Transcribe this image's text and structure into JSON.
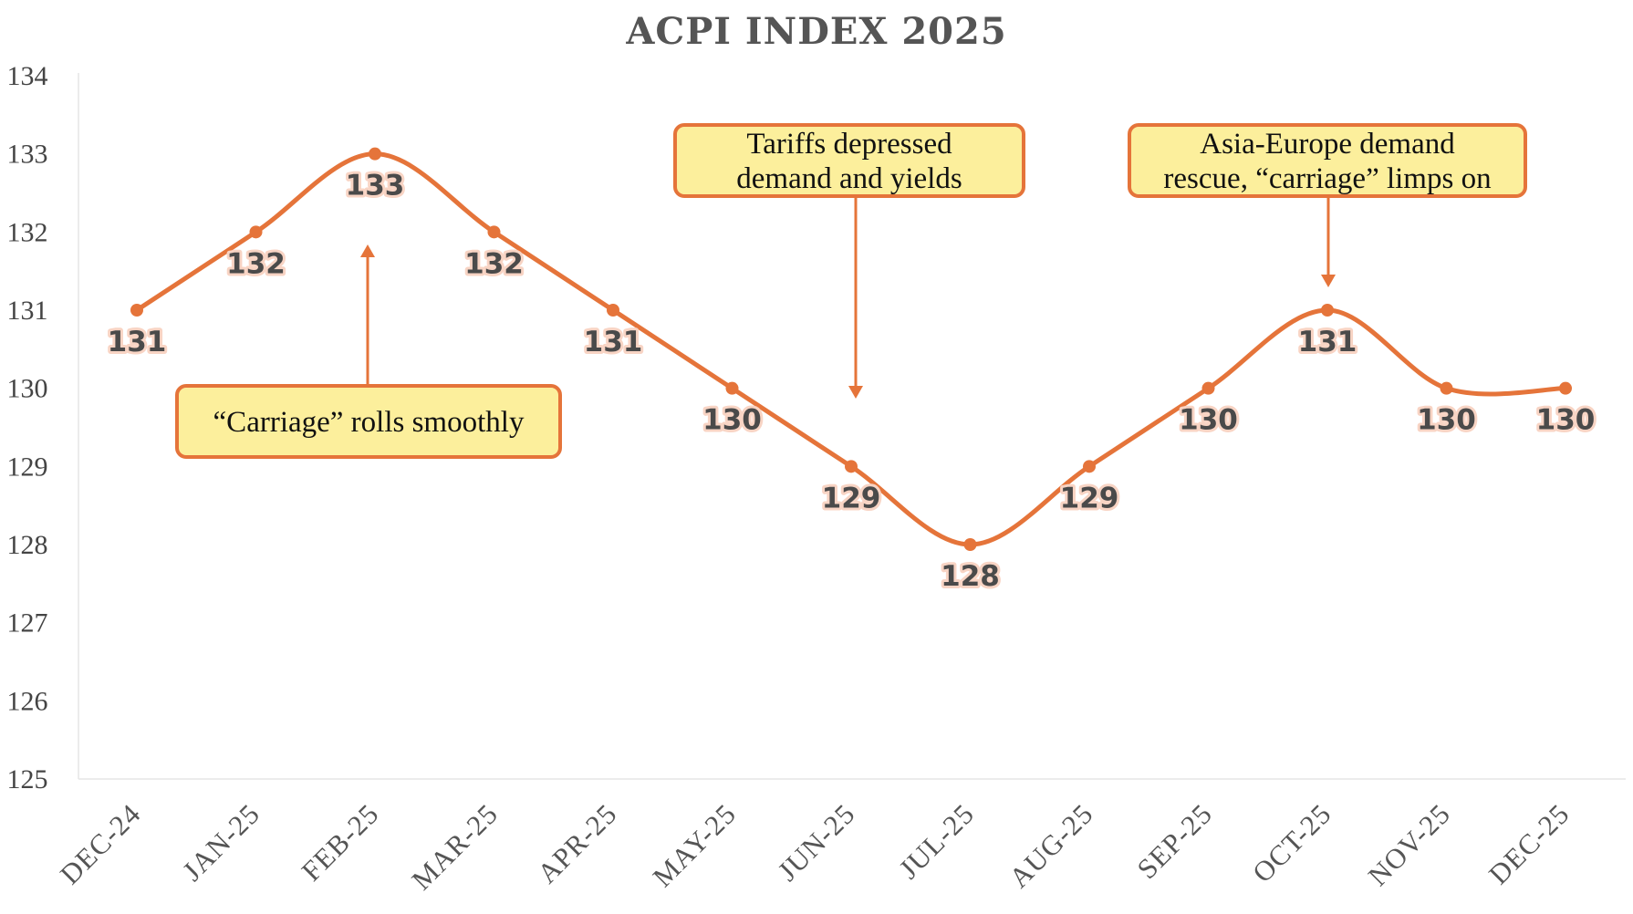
{
  "chart_data": {
    "type": "line",
    "title": "ACPI INDEX 2025",
    "xlabel": "",
    "ylabel": "",
    "categories": [
      "DEC-24",
      "JAN-25",
      "FEB-25",
      "MAR-25",
      "APR-25",
      "MAY-25",
      "JUN-25",
      "JUL-25",
      "AUG-25",
      "SEP-25",
      "OCT-25",
      "NOV-25",
      "DEC-25"
    ],
    "series": [
      {
        "values": [
          131,
          132,
          133,
          132,
          131,
          130,
          129,
          128,
          129,
          130,
          131,
          130,
          130
        ]
      }
    ],
    "ylim": [
      125,
      134
    ],
    "yticks": [
      125,
      126,
      127,
      128,
      129,
      130,
      131,
      132,
      133,
      134
    ],
    "grid": false,
    "legend": "none",
    "smooth": true,
    "colors": {
      "line": "#e5743a",
      "marker": "#e5743a"
    },
    "annotations": [
      {
        "lines": [
          "“Carriage” rolls smoothly"
        ],
        "points_to": "FEB-25"
      },
      {
        "lines": [
          "Tariffs depressed",
          "demand and yields"
        ],
        "points_to": "JUN-25"
      },
      {
        "lines": [
          "Asia-Europe demand",
          "rescue, “carriage” limps on"
        ],
        "points_to": "OCT-25"
      }
    ]
  }
}
